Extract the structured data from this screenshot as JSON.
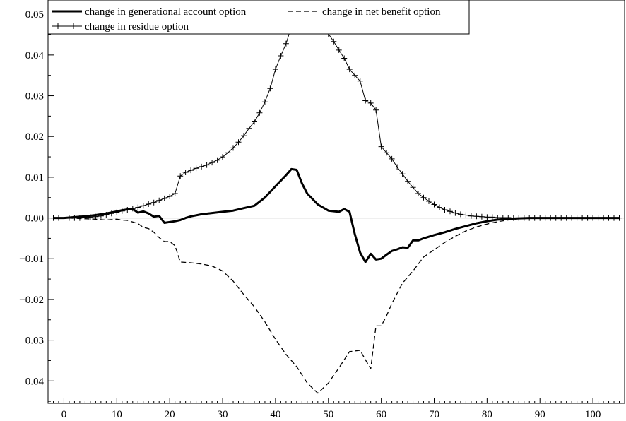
{
  "chart_data": {
    "type": "line",
    "title": "",
    "xlabel": "",
    "ylabel": "",
    "xlim": [
      -3,
      106
    ],
    "ylim": [
      -0.0455,
      0.0535
    ],
    "x_ticks": [
      0,
      10,
      20,
      30,
      40,
      50,
      60,
      70,
      80,
      90,
      100
    ],
    "x_tick_labels": [
      "0",
      "10",
      "20",
      "30",
      "40",
      "50",
      "60",
      "70",
      "80",
      "90",
      "100"
    ],
    "y_ticks": [
      -0.04,
      -0.03,
      -0.02,
      -0.01,
      0.0,
      0.01,
      0.02,
      0.03,
      0.04,
      0.05
    ],
    "y_tick_labels": [
      "-0.04",
      "-0.03",
      "-0.02",
      "-0.01",
      "0.00",
      "0.01",
      "0.02",
      "0.03",
      "0.04",
      "0.05"
    ],
    "grid": false,
    "zero_line": true,
    "legend_placement": "top-left",
    "series": [
      {
        "name": "change in generational account option",
        "style": "solid-thick",
        "color": "#000000",
        "x": [
          -2,
          0,
          2,
          4,
          6,
          8,
          10,
          11,
          12,
          13,
          14,
          15,
          16,
          17,
          18,
          19,
          20,
          21,
          22,
          23,
          24,
          26,
          28,
          30,
          32,
          34,
          36,
          38,
          40,
          42,
          43,
          44,
          45,
          46,
          48,
          50,
          52,
          53,
          54,
          55,
          56,
          57,
          58,
          59,
          60,
          61,
          62,
          63,
          64,
          65,
          66,
          67,
          68,
          70,
          72,
          74,
          76,
          78,
          80,
          82,
          84,
          86,
          88,
          90,
          92,
          95,
          100,
          105
        ],
        "y": [
          0.0,
          0.0,
          0.0002,
          0.0004,
          0.0007,
          0.0011,
          0.0016,
          0.0019,
          0.0021,
          0.0022,
          0.0013,
          0.0016,
          0.0011,
          0.0003,
          0.0005,
          -0.0012,
          -0.001,
          -0.0008,
          -0.0005,
          0.0,
          0.0004,
          0.0009,
          0.0012,
          0.0015,
          0.0018,
          0.0024,
          0.003,
          0.005,
          0.0078,
          0.0105,
          0.012,
          0.0118,
          0.0085,
          0.006,
          0.0033,
          0.0018,
          0.0015,
          0.0022,
          0.0015,
          -0.004,
          -0.0085,
          -0.0108,
          -0.0088,
          -0.0102,
          -0.01,
          -0.009,
          -0.0081,
          -0.0077,
          -0.0072,
          -0.0073,
          -0.0055,
          -0.0055,
          -0.005,
          -0.0042,
          -0.0035,
          -0.0027,
          -0.002,
          -0.0013,
          -0.0008,
          -0.0004,
          -0.0002,
          -0.0001,
          0.0,
          0.0,
          0.0,
          0.0,
          0.0,
          0.0
        ]
      },
      {
        "name": "change in net benefit option",
        "style": "dashed",
        "color": "#000000",
        "x": [
          -2,
          0,
          4,
          6,
          8,
          10,
          11,
          12,
          13,
          14,
          15,
          16,
          17,
          18,
          19,
          20,
          21,
          22,
          24,
          26,
          28,
          30,
          32,
          34,
          36,
          38,
          40,
          42,
          44,
          46,
          48,
          50,
          52,
          54,
          56,
          57,
          58,
          59,
          60,
          61,
          62,
          63,
          64,
          66,
          68,
          70,
          72,
          74,
          76,
          78,
          80,
          82,
          84,
          86,
          88,
          90,
          95,
          100,
          105
        ],
        "y": [
          0.0,
          0.0,
          -0.0002,
          -0.0003,
          -0.0005,
          -0.0003,
          -0.0005,
          -0.0006,
          -0.001,
          -0.0014,
          -0.0023,
          -0.0026,
          -0.0035,
          -0.0048,
          -0.0058,
          -0.0058,
          -0.0068,
          -0.0108,
          -0.011,
          -0.0113,
          -0.0118,
          -0.013,
          -0.0155,
          -0.0188,
          -0.0218,
          -0.0255,
          -0.0298,
          -0.0335,
          -0.0365,
          -0.0405,
          -0.043,
          -0.0405,
          -0.0368,
          -0.0328,
          -0.0325,
          -0.0348,
          -0.037,
          -0.0265,
          -0.0265,
          -0.024,
          -0.021,
          -0.0185,
          -0.016,
          -0.013,
          -0.0096,
          -0.0078,
          -0.006,
          -0.0045,
          -0.0032,
          -0.0022,
          -0.0015,
          -0.0009,
          -0.0005,
          -0.0002,
          -0.0001,
          0.0,
          0.0,
          0.0,
          0.0
        ]
      },
      {
        "name": "change in residue option",
        "style": "solid-thin-plus-markers",
        "color": "#000000",
        "x": [
          -2,
          -1,
          0,
          1,
          2,
          3,
          4,
          5,
          6,
          7,
          8,
          9,
          10,
          11,
          12,
          13,
          14,
          15,
          16,
          17,
          18,
          19,
          20,
          21,
          22,
          23,
          24,
          25,
          26,
          27,
          28,
          29,
          30,
          31,
          32,
          33,
          34,
          35,
          36,
          37,
          38,
          39,
          40,
          41,
          42,
          43,
          44,
          45,
          46,
          47,
          48,
          49,
          50,
          51,
          52,
          53,
          54,
          55,
          56,
          57,
          58,
          59,
          60,
          61,
          62,
          63,
          64,
          65,
          66,
          67,
          68,
          69,
          70,
          71,
          72,
          73,
          74,
          75,
          76,
          77,
          78,
          79,
          80,
          81,
          82,
          83,
          84,
          85,
          86,
          87,
          88,
          89,
          90,
          91,
          92,
          93,
          94,
          95,
          96,
          97,
          98,
          99,
          100,
          101,
          102,
          103,
          104,
          105
        ],
        "y": [
          0.0,
          0.0,
          0.0,
          0.0,
          0.0,
          0.0,
          0.0001,
          0.0002,
          0.0003,
          0.0005,
          0.0008,
          0.0011,
          0.0014,
          0.0017,
          0.002,
          0.0023,
          0.0026,
          0.003,
          0.0034,
          0.0038,
          0.0043,
          0.0048,
          0.0053,
          0.006,
          0.0103,
          0.0112,
          0.0117,
          0.0122,
          0.0126,
          0.013,
          0.0136,
          0.0142,
          0.015,
          0.016,
          0.0172,
          0.0186,
          0.0202,
          0.022,
          0.0236,
          0.0258,
          0.0285,
          0.0318,
          0.0365,
          0.0398,
          0.0428,
          0.047,
          0.0493,
          0.0513,
          0.05,
          0.0492,
          0.048,
          0.047,
          0.0452,
          0.0433,
          0.0412,
          0.0392,
          0.0365,
          0.035,
          0.0336,
          0.0288,
          0.0282,
          0.0265,
          0.0175,
          0.016,
          0.0145,
          0.0125,
          0.0108,
          0.009,
          0.0075,
          0.006,
          0.005,
          0.0041,
          0.0033,
          0.0026,
          0.002,
          0.0016,
          0.0012,
          0.0009,
          0.0007,
          0.0005,
          0.0004,
          0.0003,
          0.0002,
          0.0002,
          0.0001,
          0.0001,
          0.0001,
          0.0,
          0.0,
          0.0,
          0.0,
          0.0,
          0.0,
          0.0,
          0.0,
          0.0,
          0.0,
          0.0,
          0.0,
          0.0,
          0.0,
          0.0,
          0.0,
          0.0,
          0.0,
          0.0,
          0.0,
          0.0
        ]
      }
    ]
  }
}
